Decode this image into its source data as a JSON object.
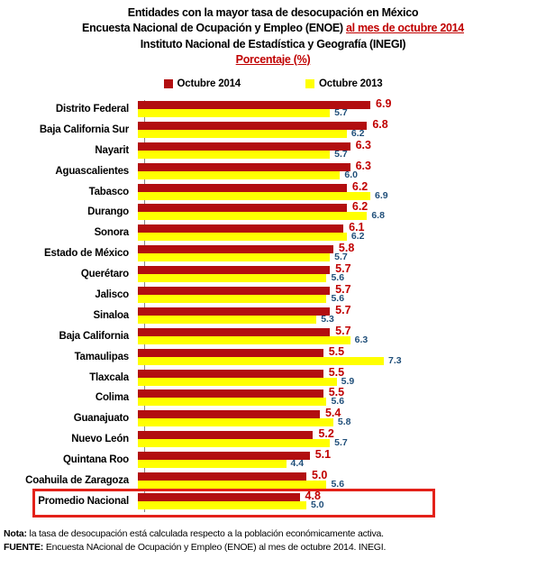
{
  "header": {
    "title_line1": "Entidades con la mayor tasa de desocupación en México",
    "title_line2_black": "Encuesta Nacional de Ocupación y Empleo (ENOE) ",
    "title_line2_red": "al mes de octubre 2014",
    "title_line3": "Instituto Nacional de Estadística y Geografía (INEGI)",
    "title_line4_red": "Porcentaje (%)"
  },
  "legend": {
    "series1_label": "Octubre 2014",
    "series2_label": "Octubre 2013"
  },
  "chart_data": {
    "type": "bar",
    "orientation": "horizontal",
    "title": "Entidades con la mayor tasa de desocupación en México",
    "subtitle": "Encuesta Nacional de Ocupación y Empleo (ENOE) al mes de octubre 2014",
    "unit": "Porcentaje (%)",
    "xlim": [
      0,
      8
    ],
    "grid": false,
    "legend_position": "top",
    "categories": [
      "Distrito Federal",
      "Baja California Sur",
      "Nayarit",
      "Aguascalientes",
      "Tabasco",
      "Durango",
      "Sonora",
      "Estado de México",
      "Querétaro",
      "Jalisco",
      "Sinaloa",
      "Baja California",
      "Tamaulipas",
      "Tlaxcala",
      "Colima",
      "Guanajuato",
      "Nuevo León",
      "Quintana Roo",
      "Coahuila de Zaragoza",
      "Promedio Nacional"
    ],
    "series": [
      {
        "name": "Octubre 2014",
        "color": "#b20e10",
        "values": [
          6.9,
          6.8,
          6.3,
          6.3,
          6.2,
          6.2,
          6.1,
          5.8,
          5.7,
          5.7,
          5.7,
          5.7,
          5.5,
          5.5,
          5.5,
          5.4,
          5.2,
          5.1,
          5.0,
          4.8
        ]
      },
      {
        "name": "Octubre 2013",
        "color": "#ffff00",
        "values": [
          5.7,
          6.2,
          5.7,
          6.0,
          6.9,
          6.8,
          6.2,
          5.7,
          5.6,
          5.6,
          5.3,
          6.3,
          7.3,
          5.9,
          5.6,
          5.8,
          5.7,
          4.4,
          5.6,
          5.0
        ]
      }
    ],
    "highlighted_category": "Promedio Nacional"
  },
  "footer": {
    "note_label": "Nota:",
    "note_text": " la tasa de desocupación está calculada respecto a la población económicamente activa.",
    "source_label": "FUENTE:",
    "source_text": " Encuesta NAcional de Ocupación y Empleo (ENOE) al mes de octubre 2014. INEGI."
  },
  "colors": {
    "series1_bar": "#b20e10",
    "series2_bar": "#ffff00",
    "series1_value_text": "#c00000",
    "series2_value_text": "#1f4e79",
    "title_accent": "#c00000",
    "highlight_border": "#e32119",
    "axis_line": "#898989"
  }
}
